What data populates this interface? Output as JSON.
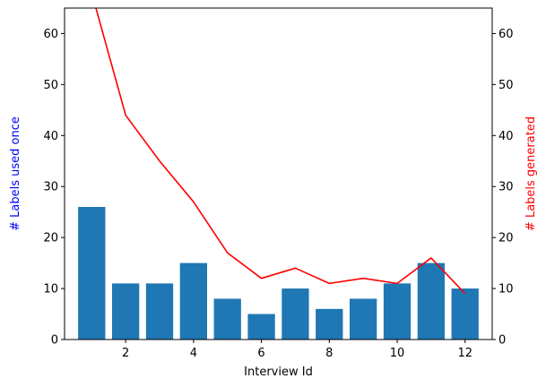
{
  "chart_data": {
    "type": "bar",
    "xlabel": "Interview Id",
    "xlim": [
      0.2,
      12.8
    ],
    "xticks": [
      2,
      4,
      6,
      8,
      10,
      12
    ],
    "ylim": [
      0,
      65
    ],
    "yticks": [
      0,
      10,
      20,
      30,
      40,
      50,
      60
    ],
    "left_axis": {
      "label": "# Labels used once",
      "label_color": "#0000ff"
    },
    "right_axis": {
      "label": "# Labels generated",
      "label_color": "#ff0000"
    },
    "bars": {
      "color": "#1f77b4",
      "x": [
        1,
        2,
        3,
        4,
        5,
        6,
        7,
        8,
        9,
        10,
        11,
        12
      ],
      "values": [
        26,
        11,
        11,
        15,
        8,
        5,
        10,
        6,
        8,
        11,
        15,
        10
      ]
    },
    "line": {
      "color": "#ff0000",
      "x": [
        1,
        2,
        3,
        4,
        5,
        6,
        7,
        8,
        9,
        10,
        11,
        12
      ],
      "values": [
        68,
        44,
        35,
        27,
        17,
        12,
        14,
        11,
        12,
        11,
        16,
        9
      ]
    }
  }
}
